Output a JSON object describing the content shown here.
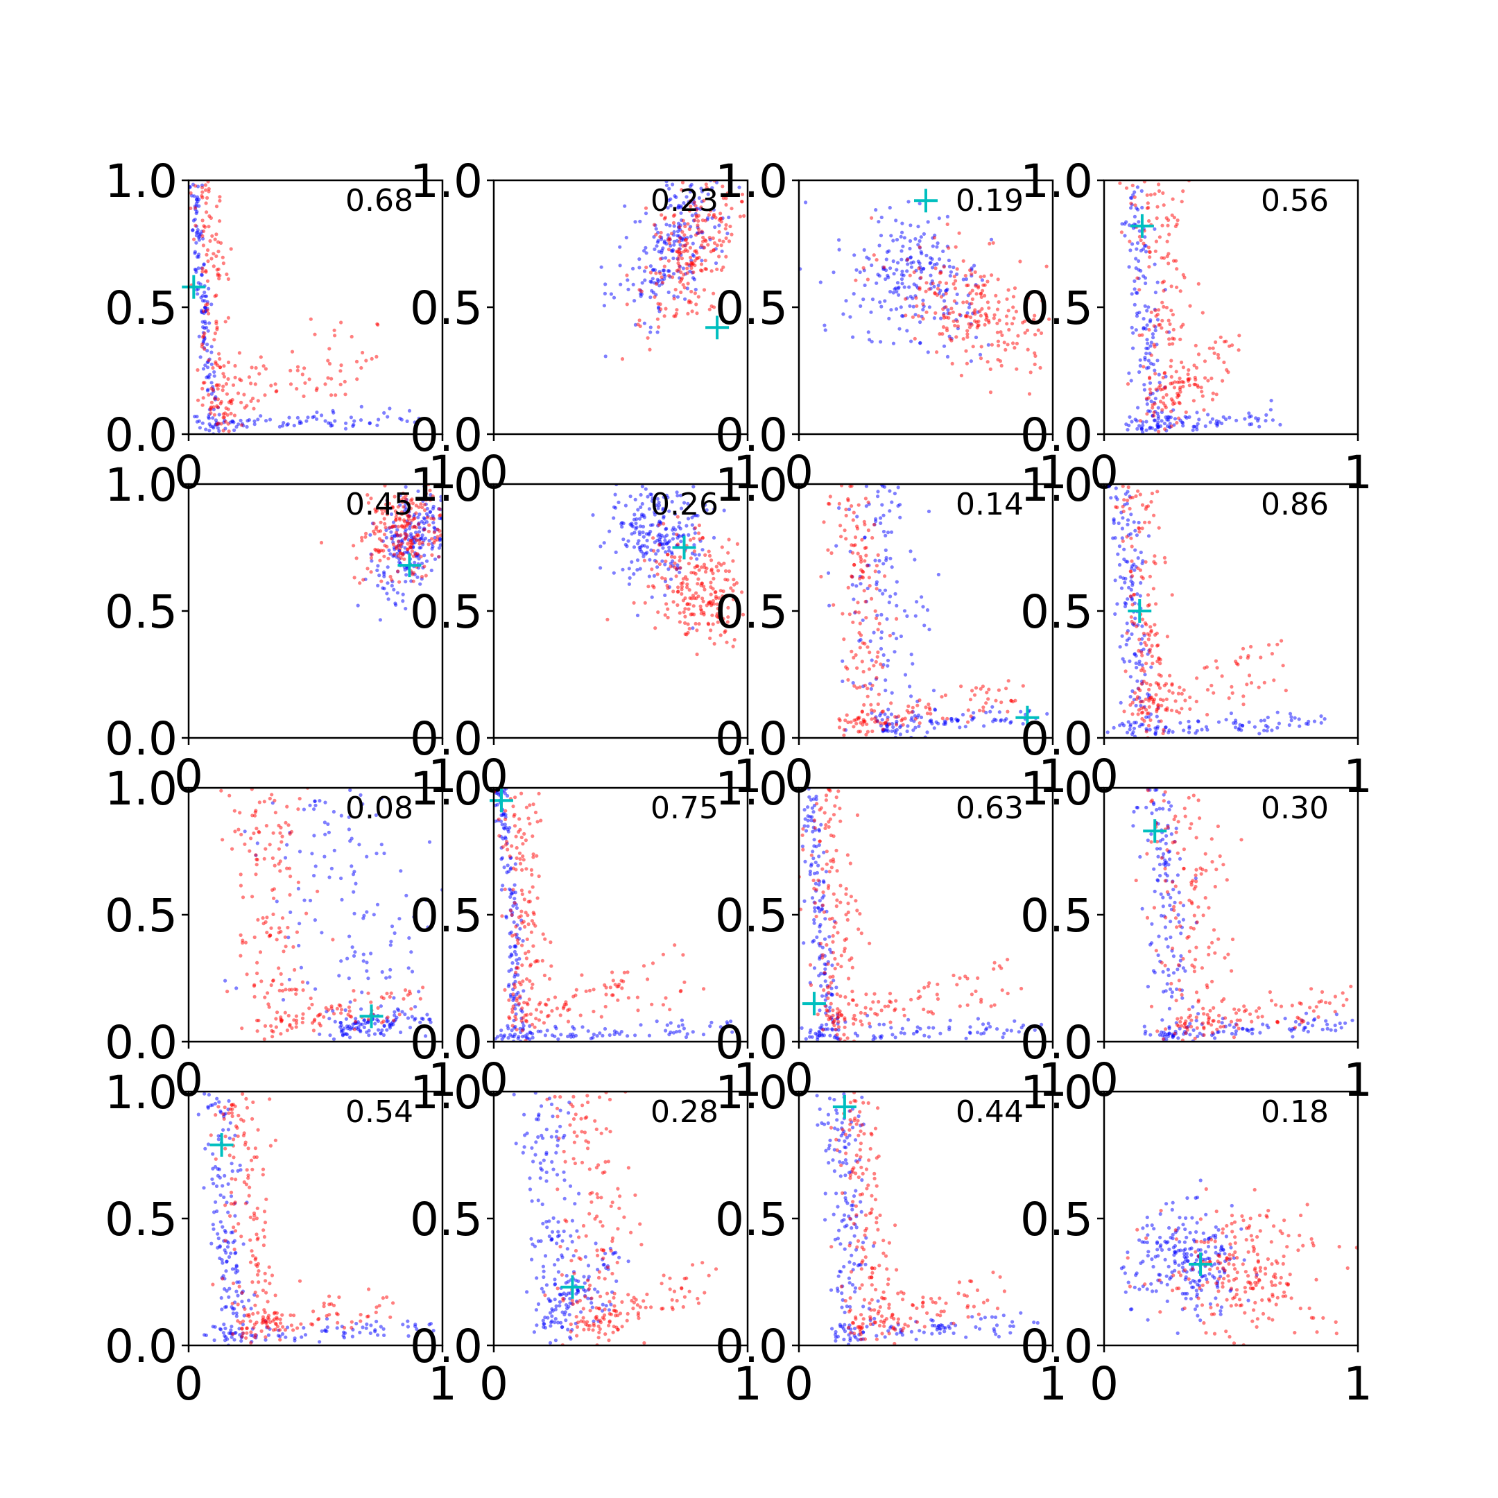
{
  "chart_data": {
    "type": "scatter",
    "layout": {
      "rows": 4,
      "cols": 4
    },
    "xlim": [
      0,
      1
    ],
    "ylim": [
      0,
      1
    ],
    "x_tick_labels": [
      "0",
      "1"
    ],
    "y_tick_labels": [
      "0.0",
      "0.5",
      "1.0"
    ],
    "colors": {
      "series_a": "#0000ff",
      "series_b": "#ff0000",
      "marker": "#00bfbf",
      "axes": "#000000",
      "background": "#ffffff"
    },
    "panels": [
      {
        "label": "0.68",
        "marker": [
          0.02,
          0.58
        ],
        "blue": {
          "shape": "L",
          "mean": [
            0.02,
            0.5
          ],
          "spread": [
            0.015,
            0.3
          ],
          "tail": [
            0.9,
            0.03
          ]
        },
        "red": {
          "shape": "L",
          "mean": [
            0.06,
            0.55
          ],
          "spread": [
            0.04,
            0.3
          ],
          "tail": [
            0.75,
            0.25
          ]
        }
      },
      {
        "label": "0.23",
        "marker": [
          0.88,
          0.42
        ],
        "blue": {
          "shape": "blob",
          "mean": [
            0.7,
            0.75
          ],
          "spread": [
            0.08,
            0.18
          ],
          "rot": -0.5
        },
        "red": {
          "shape": "blob",
          "mean": [
            0.78,
            0.72
          ],
          "spread": [
            0.08,
            0.16
          ],
          "rot": -0.5
        }
      },
      {
        "label": "0.19",
        "marker": [
          0.5,
          0.92
        ],
        "blue": {
          "shape": "blob",
          "mean": [
            0.45,
            0.6
          ],
          "spread": [
            0.14,
            0.12
          ],
          "rot": -0.6
        },
        "red": {
          "shape": "blob",
          "mean": [
            0.7,
            0.48
          ],
          "spread": [
            0.18,
            0.1
          ],
          "rot": -0.5
        }
      },
      {
        "label": "0.56",
        "marker": [
          0.15,
          0.82
        ],
        "blue": {
          "shape": "L",
          "mean": [
            0.12,
            0.6
          ],
          "spread": [
            0.04,
            0.3
          ],
          "tail": [
            0.7,
            0.03
          ]
        },
        "red": {
          "shape": "L",
          "mean": [
            0.2,
            0.5
          ],
          "spread": [
            0.08,
            0.3
          ],
          "tail": [
            0.5,
            0.2
          ]
        }
      },
      {
        "label": "0.45",
        "marker": [
          0.87,
          0.68
        ],
        "blue": {
          "shape": "blob",
          "mean": [
            0.88,
            0.78
          ],
          "spread": [
            0.06,
            0.12
          ],
          "rot": -0.4
        },
        "red": {
          "shape": "blob",
          "mean": [
            0.84,
            0.82
          ],
          "spread": [
            0.08,
            0.1
          ],
          "rot": -0.4
        }
      },
      {
        "label": "0.26",
        "marker": [
          0.75,
          0.75
        ],
        "blue": {
          "shape": "blob",
          "mean": [
            0.65,
            0.8
          ],
          "spread": [
            0.1,
            0.1
          ],
          "rot": -0.6
        },
        "red": {
          "shape": "blob",
          "mean": [
            0.82,
            0.58
          ],
          "spread": [
            0.12,
            0.1
          ],
          "rot": -0.5
        }
      },
      {
        "label": "0.14",
        "marker": [
          0.9,
          0.08
        ],
        "blue": {
          "shape": "L",
          "mean": [
            0.3,
            0.25
          ],
          "spread": [
            0.1,
            0.15
          ],
          "tail": [
            0.95,
            0.05
          ]
        },
        "red": {
          "shape": "L",
          "mean": [
            0.2,
            0.5
          ],
          "spread": [
            0.07,
            0.25
          ],
          "tail": [
            0.85,
            0.1
          ]
        }
      },
      {
        "label": "0.86",
        "marker": [
          0.14,
          0.5
        ],
        "blue": {
          "shape": "L",
          "mean": [
            0.07,
            0.5
          ],
          "spread": [
            0.04,
            0.3
          ],
          "tail": [
            0.85,
            0.03
          ]
        },
        "red": {
          "shape": "L",
          "mean": [
            0.12,
            0.5
          ],
          "spread": [
            0.06,
            0.3
          ],
          "tail": [
            0.7,
            0.2
          ]
        }
      },
      {
        "label": "0.08",
        "marker": [
          0.72,
          0.1
        ],
        "blue": {
          "shape": "L",
          "mean": [
            0.6,
            0.1
          ],
          "spread": [
            0.25,
            0.05
          ],
          "tail": [
            0.95,
            0.05
          ]
        },
        "red": {
          "shape": "L",
          "mean": [
            0.3,
            0.5
          ],
          "spread": [
            0.1,
            0.25
          ],
          "tail": [
            0.9,
            0.1
          ]
        }
      },
      {
        "label": "0.75",
        "marker": [
          0.03,
          0.95
        ],
        "blue": {
          "shape": "L",
          "mean": [
            0.03,
            0.5
          ],
          "spread": [
            0.02,
            0.3
          ],
          "tail": [
            0.95,
            0.02
          ]
        },
        "red": {
          "shape": "L",
          "mean": [
            0.08,
            0.5
          ],
          "spread": [
            0.05,
            0.3
          ],
          "tail": [
            0.85,
            0.2
          ]
        }
      },
      {
        "label": "0.63",
        "marker": [
          0.06,
          0.15
        ],
        "blue": {
          "shape": "L",
          "mean": [
            0.04,
            0.5
          ],
          "spread": [
            0.03,
            0.3
          ],
          "tail": [
            0.95,
            0.02
          ]
        },
        "red": {
          "shape": "L",
          "mean": [
            0.1,
            0.5
          ],
          "spread": [
            0.06,
            0.3
          ],
          "tail": [
            0.85,
            0.15
          ]
        }
      },
      {
        "label": "0.30",
        "marker": [
          0.2,
          0.83
        ],
        "blue": {
          "shape": "L",
          "mean": [
            0.2,
            0.7
          ],
          "spread": [
            0.06,
            0.2
          ],
          "tail": [
            0.95,
            0.03
          ]
        },
        "red": {
          "shape": "L",
          "mean": [
            0.3,
            0.45
          ],
          "spread": [
            0.1,
            0.25
          ],
          "tail": [
            0.95,
            0.1
          ]
        }
      },
      {
        "label": "0.54",
        "marker": [
          0.13,
          0.79
        ],
        "blue": {
          "shape": "L",
          "mean": [
            0.1,
            0.6
          ],
          "spread": [
            0.05,
            0.25
          ],
          "tail": [
            0.95,
            0.03
          ]
        },
        "red": {
          "shape": "L",
          "mean": [
            0.2,
            0.4
          ],
          "spread": [
            0.08,
            0.25
          ],
          "tail": [
            0.8,
            0.1
          ]
        }
      },
      {
        "label": "0.28",
        "marker": [
          0.31,
          0.23
        ],
        "blue": {
          "shape": "L",
          "mean": [
            0.2,
            0.6
          ],
          "spread": [
            0.07,
            0.25
          ],
          "tail": [
            0.5,
            0.2
          ]
        },
        "red": {
          "shape": "L",
          "mean": [
            0.35,
            0.5
          ],
          "spread": [
            0.1,
            0.3
          ],
          "tail": [
            0.85,
            0.15
          ]
        }
      },
      {
        "label": "0.44",
        "marker": [
          0.18,
          0.94
        ],
        "blue": {
          "shape": "L",
          "mean": [
            0.15,
            0.5
          ],
          "spread": [
            0.05,
            0.3
          ],
          "tail": [
            0.95,
            0.05
          ]
        },
        "red": {
          "shape": "L",
          "mean": [
            0.22,
            0.5
          ],
          "spread": [
            0.06,
            0.25
          ],
          "tail": [
            0.8,
            0.15
          ]
        }
      },
      {
        "label": "0.18",
        "marker": [
          0.38,
          0.32
        ],
        "blue": {
          "shape": "blob",
          "mean": [
            0.33,
            0.32
          ],
          "spread": [
            0.12,
            0.1
          ],
          "rot": -0.3
        },
        "red": {
          "shape": "blob",
          "mean": [
            0.55,
            0.3
          ],
          "spread": [
            0.16,
            0.12
          ],
          "rot": -0.4
        }
      }
    ]
  }
}
